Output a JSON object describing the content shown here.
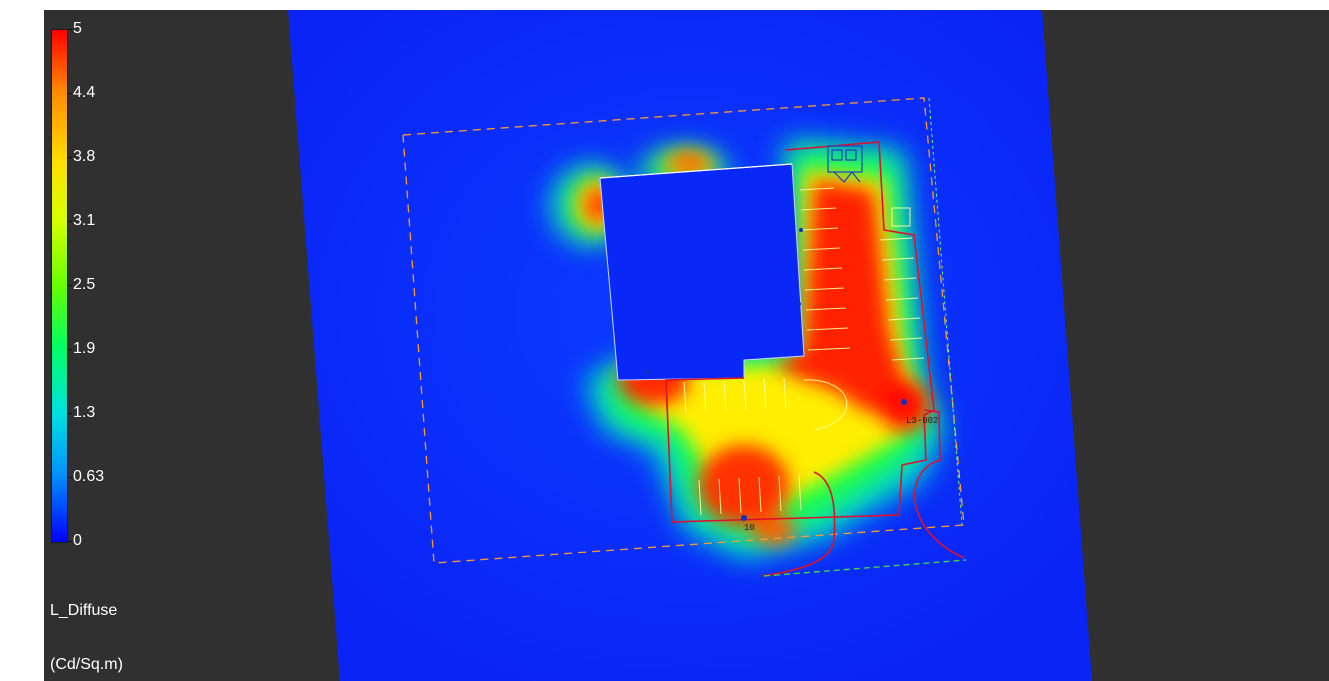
{
  "legend": {
    "ticks": [
      "5",
      "4.4",
      "3.8",
      "3.1",
      "2.5",
      "1.9",
      "1.3",
      "0.63",
      "0"
    ],
    "metric": "L_Diffuse",
    "unit": "(Cd/Sq.m)"
  },
  "scene": {
    "labels": {
      "pole_a": "10",
      "pole_b": "L3-002"
    }
  },
  "colors": {
    "background": "#303030",
    "calc_plane": "#0a2cf0",
    "high": "#ff0000",
    "mid": "#ffff00",
    "low": "#0000ff"
  }
}
